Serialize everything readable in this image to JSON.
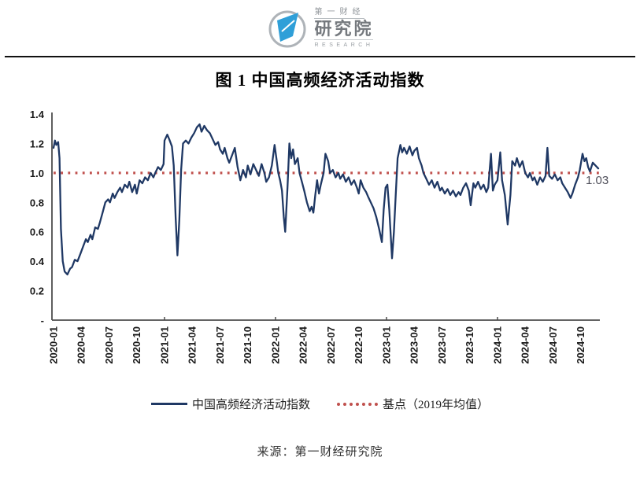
{
  "header": {
    "logo": {
      "line1": "第一财经",
      "line2": "研究院",
      "line3": "RESEARCH"
    }
  },
  "figure": {
    "title": "图 1 中国高频经济活动指数",
    "source": "来源：第一财经研究院"
  },
  "legend": {
    "series_label": "中国高频经济活动指数",
    "baseline_label": "基点（2019年均值）"
  },
  "colors": {
    "series": "#1f3864",
    "baseline": "#c0504d",
    "axis": "#4d4d4d",
    "tick_text": "#1a1a1a",
    "annotation_text": "#4f4f5a"
  },
  "chart_data": {
    "type": "line",
    "title": "图 1 中国高频经济活动指数",
    "xlabel": "",
    "ylabel": "",
    "ylim": [
      0,
      1.4
    ],
    "xlim_months": [
      0,
      58.9
    ],
    "grid": false,
    "legend_position": "bottom",
    "y_ticks": [
      {
        "label": "1.4",
        "value": 1.4
      },
      {
        "label": "1.2",
        "value": 1.2
      },
      {
        "label": "1.0",
        "value": 1.0
      },
      {
        "label": "0.8",
        "value": 0.8
      },
      {
        "label": "0.6",
        "value": 0.6
      },
      {
        "label": "0.4",
        "value": 0.4
      },
      {
        "label": "0.2",
        "value": 0.2
      },
      {
        "label": "-",
        "value": 0.0
      }
    ],
    "x_tick_months": [
      0,
      3,
      6,
      9,
      12,
      15,
      18,
      21,
      24,
      27,
      30,
      33,
      36,
      39,
      42,
      45,
      48,
      51,
      54,
      57
    ],
    "x_tick_labels": [
      "2020-01",
      "2020-04",
      "2020-07",
      "2020-10",
      "2021-01",
      "2021-04",
      "2021-07",
      "2021-10",
      "2022-01",
      "2022-04",
      "2022-07",
      "2022-10",
      "2023-01",
      "2023-04",
      "2023-07",
      "2023-10",
      "2024-01",
      "2024-04",
      "2024-07",
      "2024-10"
    ],
    "year_tick_months": [
      12,
      24,
      36,
      48
    ],
    "baseline": {
      "value": 1.0,
      "label": "基点（2019年均值）",
      "color": "#c0504d"
    },
    "annotation": {
      "text": "1.03",
      "value": 1.03
    },
    "series": [
      {
        "name": "中国高频经济活动指数",
        "color": "#1f3864",
        "points": [
          [
            0,
            1.17
          ],
          [
            0.15,
            1.22
          ],
          [
            0.3,
            1.19
          ],
          [
            0.5,
            1.21
          ],
          [
            0.65,
            1.1
          ],
          [
            0.8,
            0.62
          ],
          [
            1,
            0.4
          ],
          [
            1.2,
            0.33
          ],
          [
            1.5,
            0.31
          ],
          [
            1.8,
            0.35
          ],
          [
            2,
            0.36
          ],
          [
            2.3,
            0.41
          ],
          [
            2.6,
            0.4
          ],
          [
            2.9,
            0.45
          ],
          [
            3.2,
            0.5
          ],
          [
            3.5,
            0.55
          ],
          [
            3.7,
            0.53
          ],
          [
            4,
            0.58
          ],
          [
            4.2,
            0.55
          ],
          [
            4.5,
            0.63
          ],
          [
            4.8,
            0.62
          ],
          [
            5,
            0.66
          ],
          [
            5.3,
            0.73
          ],
          [
            5.6,
            0.8
          ],
          [
            5.9,
            0.82
          ],
          [
            6.1,
            0.8
          ],
          [
            6.4,
            0.86
          ],
          [
            6.6,
            0.83
          ],
          [
            6.9,
            0.87
          ],
          [
            7.2,
            0.9
          ],
          [
            7.4,
            0.87
          ],
          [
            7.7,
            0.92
          ],
          [
            8,
            0.9
          ],
          [
            8.2,
            0.94
          ],
          [
            8.5,
            0.87
          ],
          [
            8.8,
            0.92
          ],
          [
            9,
            0.86
          ],
          [
            9.3,
            0.95
          ],
          [
            9.6,
            0.93
          ],
          [
            9.9,
            0.97
          ],
          [
            10.2,
            0.95
          ],
          [
            10.5,
            1
          ],
          [
            10.8,
            0.97
          ],
          [
            11,
            1
          ],
          [
            11.3,
            1.04
          ],
          [
            11.6,
            1.02
          ],
          [
            11.9,
            1.06
          ],
          [
            12,
            1.22
          ],
          [
            12.3,
            1.26
          ],
          [
            12.5,
            1.23
          ],
          [
            12.8,
            1.18
          ],
          [
            13,
            1.05
          ],
          [
            13.2,
            0.7
          ],
          [
            13.4,
            0.44
          ],
          [
            13.6,
            0.68
          ],
          [
            13.8,
            1.02
          ],
          [
            14,
            1.2
          ],
          [
            14.3,
            1.22
          ],
          [
            14.6,
            1.2
          ],
          [
            14.9,
            1.24
          ],
          [
            15.2,
            1.27
          ],
          [
            15.5,
            1.31
          ],
          [
            15.8,
            1.33
          ],
          [
            16,
            1.28
          ],
          [
            16.3,
            1.32
          ],
          [
            16.6,
            1.29
          ],
          [
            16.9,
            1.27
          ],
          [
            17.2,
            1.23
          ],
          [
            17.5,
            1.19
          ],
          [
            17.8,
            1.21
          ],
          [
            18,
            1.16
          ],
          [
            18.3,
            1.13
          ],
          [
            18.5,
            1.17
          ],
          [
            18.8,
            1.1
          ],
          [
            19,
            1.07
          ],
          [
            19.3,
            1.12
          ],
          [
            19.6,
            1.17
          ],
          [
            19.9,
            1.04
          ],
          [
            20.2,
            0.95
          ],
          [
            20.5,
            1.02
          ],
          [
            20.8,
            0.97
          ],
          [
            21,
            1.05
          ],
          [
            21.3,
            0.99
          ],
          [
            21.6,
            1.06
          ],
          [
            21.9,
            1.02
          ],
          [
            22.2,
            0.98
          ],
          [
            22.5,
            1.06
          ],
          [
            22.8,
            1
          ],
          [
            23,
            0.94
          ],
          [
            23.3,
            0.97
          ],
          [
            23.6,
            1.05
          ],
          [
            23.9,
            1.19
          ],
          [
            24.1,
            1.1
          ],
          [
            24.3,
            1
          ],
          [
            24.5,
            0.95
          ],
          [
            24.7,
            0.88
          ],
          [
            24.9,
            0.7
          ],
          [
            25.05,
            0.6
          ],
          [
            25.3,
            0.9
          ],
          [
            25.5,
            1.2
          ],
          [
            25.7,
            1.1
          ],
          [
            25.9,
            1.16
          ],
          [
            26.1,
            1.06
          ],
          [
            26.4,
            1.1
          ],
          [
            26.6,
            1
          ],
          [
            26.9,
            0.93
          ],
          [
            27.1,
            0.88
          ],
          [
            27.4,
            0.8
          ],
          [
            27.7,
            0.74
          ],
          [
            27.9,
            0.77
          ],
          [
            28.1,
            0.73
          ],
          [
            28.3,
            0.85
          ],
          [
            28.5,
            0.95
          ],
          [
            28.7,
            0.86
          ],
          [
            28.9,
            0.92
          ],
          [
            29.2,
            1
          ],
          [
            29.4,
            1.13
          ],
          [
            29.7,
            1.08
          ],
          [
            29.9,
            1
          ],
          [
            30.2,
            1.02
          ],
          [
            30.5,
            0.97
          ],
          [
            30.8,
            1
          ],
          [
            31,
            0.96
          ],
          [
            31.3,
            0.99
          ],
          [
            31.6,
            0.94
          ],
          [
            31.9,
            0.97
          ],
          [
            32.2,
            0.92
          ],
          [
            32.5,
            0.95
          ],
          [
            32.8,
            0.9
          ],
          [
            33,
            0.86
          ],
          [
            33.2,
            0.95
          ],
          [
            33.5,
            0.9
          ],
          [
            33.8,
            0.87
          ],
          [
            34,
            0.84
          ],
          [
            34.3,
            0.8
          ],
          [
            34.6,
            0.76
          ],
          [
            34.9,
            0.7
          ],
          [
            35.2,
            0.62
          ],
          [
            35.5,
            0.53
          ],
          [
            35.7,
            0.75
          ],
          [
            35.9,
            0.9
          ],
          [
            36.1,
            0.92
          ],
          [
            36.3,
            0.75
          ],
          [
            36.6,
            0.42
          ],
          [
            36.8,
            0.6
          ],
          [
            37,
            0.85
          ],
          [
            37.2,
            1.1
          ],
          [
            37.5,
            1.19
          ],
          [
            37.7,
            1.14
          ],
          [
            37.9,
            1.17
          ],
          [
            38.2,
            1.13
          ],
          [
            38.5,
            1.18
          ],
          [
            38.8,
            1.12
          ],
          [
            39,
            1.15
          ],
          [
            39.3,
            1.17
          ],
          [
            39.5,
            1.1
          ],
          [
            39.8,
            1.05
          ],
          [
            40,
            1
          ],
          [
            40.3,
            0.96
          ],
          [
            40.6,
            0.92
          ],
          [
            40.9,
            0.95
          ],
          [
            41.2,
            0.9
          ],
          [
            41.5,
            0.94
          ],
          [
            41.8,
            0.88
          ],
          [
            42,
            0.9
          ],
          [
            42.3,
            0.86
          ],
          [
            42.6,
            0.89
          ],
          [
            42.9,
            0.85
          ],
          [
            43.2,
            0.88
          ],
          [
            43.5,
            0.84
          ],
          [
            43.8,
            0.87
          ],
          [
            44,
            0.85
          ],
          [
            44.3,
            0.9
          ],
          [
            44.6,
            0.93
          ],
          [
            44.9,
            0.88
          ],
          [
            45.1,
            0.78
          ],
          [
            45.4,
            0.93
          ],
          [
            45.6,
            0.9
          ],
          [
            45.9,
            0.94
          ],
          [
            46.2,
            0.89
          ],
          [
            46.5,
            0.92
          ],
          [
            46.8,
            0.87
          ],
          [
            47,
            0.9
          ],
          [
            47.3,
            1.13
          ],
          [
            47.5,
            0.88
          ],
          [
            47.7,
            0.92
          ],
          [
            48,
            0.95
          ],
          [
            48.3,
            1.14
          ],
          [
            48.5,
            0.95
          ],
          [
            48.8,
            0.85
          ],
          [
            49.1,
            0.65
          ],
          [
            49.4,
            0.85
          ],
          [
            49.6,
            1.08
          ],
          [
            49.9,
            1.05
          ],
          [
            50.1,
            1.1
          ],
          [
            50.4,
            1.04
          ],
          [
            50.7,
            1.08
          ],
          [
            51,
            1
          ],
          [
            51.3,
            0.97
          ],
          [
            51.5,
            1
          ],
          [
            51.8,
            0.95
          ],
          [
            52,
            0.97
          ],
          [
            52.3,
            0.92
          ],
          [
            52.6,
            0.97
          ],
          [
            52.9,
            0.94
          ],
          [
            53.2,
            0.98
          ],
          [
            53.4,
            1.17
          ],
          [
            53.6,
            0.98
          ],
          [
            53.9,
            0.96
          ],
          [
            54.2,
            0.99
          ],
          [
            54.5,
            0.95
          ],
          [
            54.8,
            0.97
          ],
          [
            55,
            0.93
          ],
          [
            55.3,
            0.9
          ],
          [
            55.6,
            0.87
          ],
          [
            55.9,
            0.83
          ],
          [
            56.1,
            0.86
          ],
          [
            56.4,
            0.92
          ],
          [
            56.7,
            0.97
          ],
          [
            56.9,
            1.02
          ],
          [
            57.2,
            1.13
          ],
          [
            57.4,
            1.08
          ],
          [
            57.6,
            1.1
          ],
          [
            57.8,
            1.04
          ],
          [
            58,
            1.01
          ],
          [
            58.3,
            1.07
          ],
          [
            58.6,
            1.05
          ],
          [
            58.9,
            1.03
          ]
        ]
      }
    ]
  }
}
